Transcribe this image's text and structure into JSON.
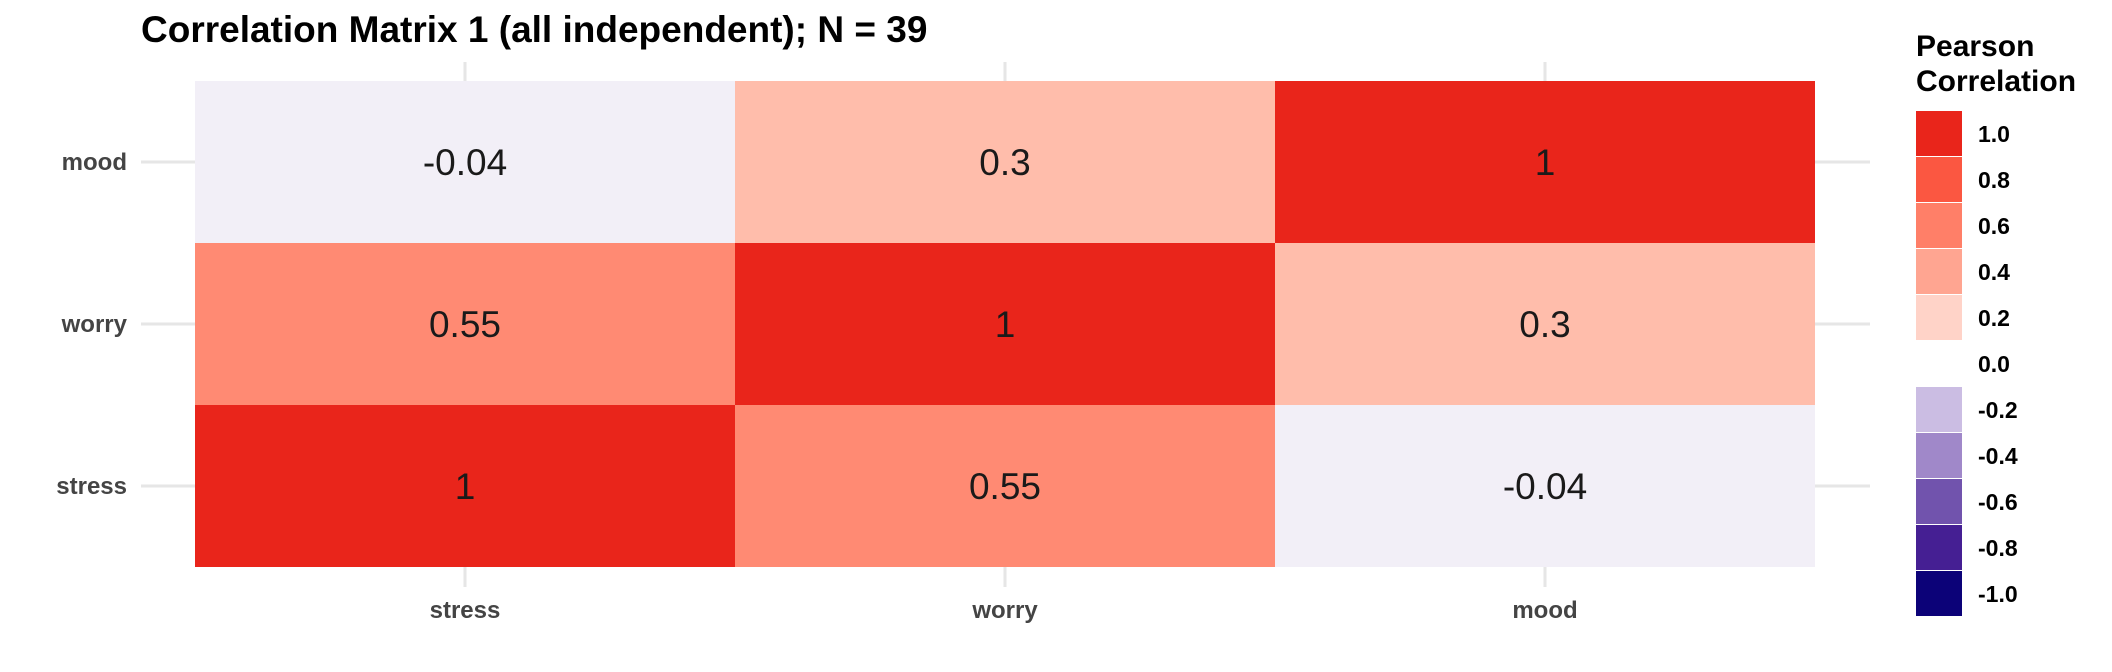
{
  "chart_data": {
    "type": "heatmap",
    "title": "Correlation Matrix 1 (all independent); N = 39",
    "x_categories": [
      "stress",
      "worry",
      "mood"
    ],
    "y_categories": [
      "stress",
      "worry",
      "mood"
    ],
    "cells": [
      {
        "x": "stress",
        "y": "mood",
        "value": -0.04,
        "label": "-0.04"
      },
      {
        "x": "worry",
        "y": "mood",
        "value": 0.3,
        "label": "0.3"
      },
      {
        "x": "mood",
        "y": "mood",
        "value": 1,
        "label": "1"
      },
      {
        "x": "stress",
        "y": "worry",
        "value": 0.55,
        "label": "0.55"
      },
      {
        "x": "worry",
        "y": "worry",
        "value": 1,
        "label": "1"
      },
      {
        "x": "mood",
        "y": "worry",
        "value": 0.3,
        "label": "0.3"
      },
      {
        "x": "stress",
        "y": "stress",
        "value": 1,
        "label": "1"
      },
      {
        "x": "worry",
        "y": "stress",
        "value": 0.55,
        "label": "0.55"
      },
      {
        "x": "mood",
        "y": "stress",
        "value": -0.04,
        "label": "-0.04"
      }
    ],
    "legend": {
      "title_lines": [
        "Pearson",
        "Correlation"
      ],
      "position": "right",
      "entries": [
        {
          "label": "1.0",
          "color": "#e9251b"
        },
        {
          "label": "0.8",
          "color": "#fb5741"
        },
        {
          "label": "0.6",
          "color": "#ff7f68"
        },
        {
          "label": "0.4",
          "color": "#ffa591"
        },
        {
          "label": "0.2",
          "color": "#ffd3c8"
        },
        {
          "label": "0.0",
          "color": "#ffffff"
        },
        {
          "label": "-0.2",
          "color": "#cbbde3"
        },
        {
          "label": "-0.4",
          "color": "#a088c9"
        },
        {
          "label": "-0.6",
          "color": "#7153ad"
        },
        {
          "label": "-0.8",
          "color": "#451f93"
        },
        {
          "label": "-1.0",
          "color": "#0c0278"
        }
      ]
    },
    "colors": {
      "strong_positive": "#e9251b",
      "moderate_positive": "#ff8a73",
      "weak_positive": "#ffbdab",
      "near_zero": "#f2eff7"
    },
    "grid": true
  }
}
